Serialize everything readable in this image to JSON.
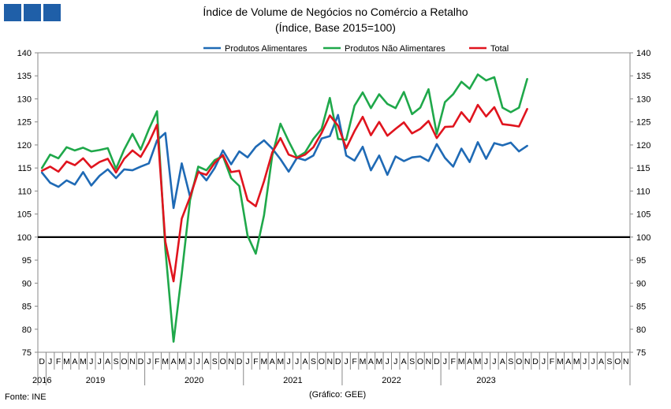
{
  "header": {
    "logo_colors": [
      "#1f5fa8",
      "#1f5fa8",
      "#1f5fa8"
    ]
  },
  "footer": {
    "source": "Fonte: INE",
    "credit": "(Gráfico: GEE)"
  },
  "chart_data": {
    "type": "line",
    "title": "Índice de Volume de Negócios no Comércio a Retalho",
    "subtitle": "(Índice, Base 2015=100)",
    "ylim": [
      75,
      140
    ],
    "yticks": [
      75,
      80,
      85,
      90,
      95,
      100,
      105,
      110,
      115,
      120,
      125,
      130,
      135,
      140
    ],
    "y_axis_right_mirror": true,
    "reference_line": 100,
    "legend_position": "top-center",
    "grid": false,
    "x_month_labels": [
      "D",
      "J",
      "F",
      "M",
      "A",
      "M",
      "J",
      "J",
      "A",
      "S",
      "O",
      "N",
      "D",
      "J",
      "F",
      "M",
      "A",
      "M",
      "J",
      "J",
      "A",
      "S",
      "O",
      "N",
      "D",
      "J",
      "F",
      "M",
      "A",
      "M",
      "J",
      "J",
      "A",
      "S",
      "O",
      "N",
      "D",
      "J",
      "F",
      "M",
      "A",
      "M",
      "J",
      "J",
      "A",
      "S",
      "O",
      "N",
      "D",
      "J",
      "F",
      "M",
      "A",
      "M",
      "J",
      "J",
      "A",
      "S",
      "O",
      "N",
      "D",
      "J",
      "F",
      "M",
      "A",
      "M",
      "J",
      "J",
      "A",
      "S",
      "O",
      "N"
    ],
    "x_year_labels": [
      {
        "label": "2016",
        "start": 0,
        "end": 0
      },
      {
        "label": "2019",
        "start": 1,
        "end": 12
      },
      {
        "label": "2020",
        "start": 13,
        "end": 24
      },
      {
        "label": "2021",
        "start": 25,
        "end": 36
      },
      {
        "label": "2022",
        "start": 37,
        "end": 48
      },
      {
        "label": "2023",
        "start": 49,
        "end": 59
      }
    ],
    "series": [
      {
        "name": "Produtos Alimentares",
        "color": "#1f6ab5",
        "values": [
          114.0,
          111.8,
          110.9,
          112.3,
          111.4,
          114.1,
          111.2,
          113.3,
          114.7,
          112.8,
          114.7,
          114.5,
          115.3,
          116.0,
          121.0,
          122.6,
          106.3,
          116.0,
          108.8,
          114.4,
          112.3,
          115.0,
          118.8,
          115.8,
          118.6,
          117.3,
          119.6,
          121.0,
          119.2,
          116.9,
          114.2,
          117.2,
          116.7,
          117.7,
          121.4,
          121.9,
          126.5,
          117.7,
          116.6,
          119.6,
          114.5,
          117.7,
          113.5,
          117.5,
          116.5,
          117.3,
          117.5,
          116.5,
          120.2,
          117.2,
          115.3,
          119.2,
          116.3,
          120.6,
          117.0,
          120.4,
          119.9,
          120.5,
          118.6,
          119.8
        ]
      },
      {
        "name": "Produtos Não Alimentares",
        "color": "#1fa84a",
        "values": [
          115.0,
          117.9,
          117.1,
          119.5,
          118.8,
          119.4,
          118.6,
          118.9,
          119.3,
          114.8,
          119.0,
          122.4,
          119.0,
          123.4,
          127.3,
          97.4,
          77.3,
          92.0,
          108.0,
          115.3,
          114.5,
          116.7,
          117.6,
          112.8,
          111.1,
          100.3,
          96.4,
          104.7,
          117.7,
          124.6,
          120.8,
          117.3,
          118.4,
          121.3,
          123.5,
          130.2,
          121.3,
          121.1,
          128.5,
          131.4,
          128.0,
          131.0,
          128.9,
          128.0,
          131.5,
          126.7,
          128.1,
          132.1,
          122.4,
          129.3,
          131.0,
          133.7,
          132.2,
          135.3,
          134.0,
          134.7,
          128.1,
          127.1,
          128.1,
          134.3
        ]
      },
      {
        "name": "Total",
        "color": "#e0141e",
        "values": [
          114.4,
          115.3,
          114.2,
          116.4,
          115.6,
          117.1,
          115.1,
          116.3,
          117.0,
          114.0,
          117.0,
          118.8,
          117.4,
          120.5,
          124.4,
          99.0,
          90.4,
          104.0,
          108.7,
          114.1,
          113.5,
          116.1,
          117.8,
          114.1,
          114.4,
          108.0,
          106.7,
          112.1,
          118.4,
          121.5,
          117.9,
          117.2,
          117.9,
          119.5,
          122.6,
          126.4,
          124.2,
          119.3,
          123.0,
          126.1,
          122.1,
          125.0,
          122.0,
          123.5,
          124.9,
          122.5,
          123.5,
          125.2,
          121.5,
          123.9,
          124.0,
          127.1,
          125.0,
          128.7,
          126.2,
          128.2,
          124.5,
          124.3,
          124.0,
          127.8
        ]
      }
    ]
  }
}
